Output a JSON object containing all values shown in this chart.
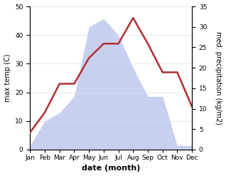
{
  "months": [
    "Jan",
    "Feb",
    "Mar",
    "Apr",
    "May",
    "Jun",
    "Jul",
    "Aug",
    "Sep",
    "Oct",
    "Nov",
    "Dec"
  ],
  "temperature": [
    6,
    13,
    23,
    23,
    32,
    37,
    37,
    46,
    37,
    27,
    27,
    15
  ],
  "precipitation": [
    1,
    7,
    9,
    13,
    30,
    32,
    28,
    20,
    13,
    13,
    1,
    1
  ],
  "temp_color": "#b03030",
  "precip_fill_color": "#c8d0f0",
  "left_ylim": [
    0,
    50
  ],
  "right_ylim": [
    0,
    35
  ],
  "left_yticks": [
    0,
    10,
    20,
    30,
    40,
    50
  ],
  "right_yticks": [
    0,
    5,
    10,
    15,
    20,
    25,
    30,
    35
  ],
  "xlabel": "date (month)",
  "ylabel_left": "max temp (C)",
  "ylabel_right": "med. precipitation (kg/m2)",
  "bg_color": "#ffffff",
  "tick_fontsize": 6.5,
  "label_fontsize": 7,
  "xlabel_fontsize": 8
}
